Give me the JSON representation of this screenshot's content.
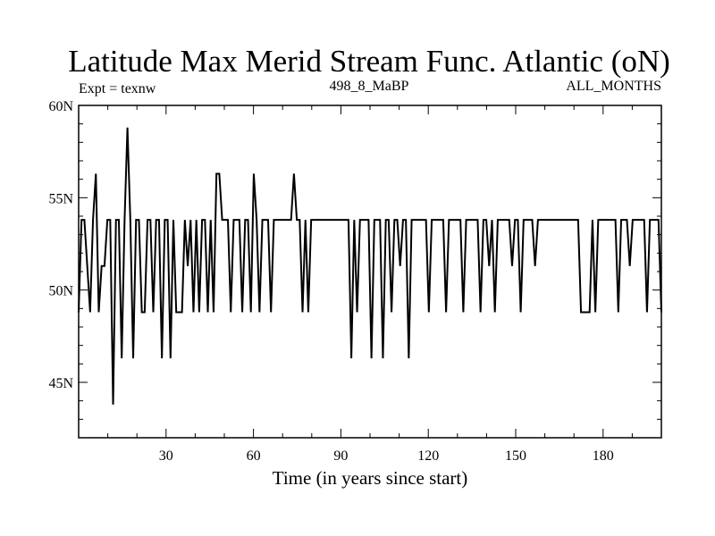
{
  "chart_data": {
    "type": "line",
    "title": "Latitude Max Merid Stream Func. Atlantic (oN)",
    "left_label": "Expt = texnw",
    "center_label": "498_8_MaBP",
    "right_label": "ALL_MONTHS",
    "xlabel": "Time (in years since start)",
    "ylabel": "",
    "xlim": [
      0,
      200
    ],
    "ylim": [
      42,
      60
    ],
    "x_ticks": [
      30,
      60,
      90,
      120,
      150,
      180
    ],
    "x_tick_labels": [
      "30",
      "60",
      "90",
      "120",
      "150",
      "180"
    ],
    "y_ticks": [
      45,
      50,
      55,
      60
    ],
    "y_tick_labels": [
      "45N",
      "50N",
      "55N",
      "60N"
    ],
    "grid": false,
    "series": [
      {
        "color": "#000000",
        "values": [
          48.8,
          53.8,
          53.8,
          51.3,
          48.8,
          53.8,
          56.3,
          48.8,
          51.3,
          51.3,
          53.8,
          53.8,
          43.8,
          53.8,
          53.8,
          46.3,
          53.8,
          58.8,
          53.8,
          46.3,
          53.8,
          53.8,
          48.8,
          48.8,
          53.8,
          53.8,
          48.8,
          53.8,
          53.8,
          46.3,
          53.8,
          53.8,
          46.3,
          53.8,
          48.8,
          48.8,
          48.8,
          53.8,
          51.3,
          53.8,
          48.8,
          53.8,
          48.8,
          53.8,
          53.8,
          48.8,
          53.8,
          48.8,
          56.3,
          56.3,
          53.8,
          53.8,
          53.8,
          48.8,
          53.8,
          53.8,
          53.8,
          48.8,
          53.8,
          53.8,
          48.8,
          56.3,
          53.8,
          48.8,
          53.8,
          53.8,
          53.8,
          48.8,
          53.8,
          53.8,
          53.8,
          53.8,
          53.8,
          53.8,
          53.8,
          56.3,
          53.8,
          53.8,
          48.8,
          53.8,
          48.8,
          53.8,
          53.8,
          53.8,
          53.8,
          53.8,
          53.8,
          53.8,
          53.8,
          53.8,
          53.8,
          53.8,
          53.8,
          53.8,
          53.8,
          46.3,
          53.8,
          48.8,
          53.8,
          53.8,
          53.8,
          53.8,
          46.3,
          53.8,
          53.8,
          53.8,
          46.3,
          53.8,
          53.8,
          48.8,
          53.8,
          53.8,
          51.3,
          53.8,
          53.8,
          46.3,
          53.8,
          53.8,
          53.8,
          53.8,
          53.8,
          53.8,
          48.8,
          53.8,
          53.8,
          53.8,
          53.8,
          53.8,
          48.8,
          53.8,
          53.8,
          53.8,
          53.8,
          53.8,
          48.8,
          53.8,
          53.8,
          53.8,
          53.8,
          53.8,
          48.8,
          53.8,
          53.8,
          51.3,
          53.8,
          48.8,
          53.8,
          53.8,
          53.8,
          53.8,
          53.8,
          51.3,
          53.8,
          53.8,
          48.8,
          53.8,
          53.8,
          53.8,
          53.8,
          51.3,
          53.8,
          53.8,
          53.8,
          53.8,
          53.8,
          53.8,
          53.8,
          53.8,
          53.8,
          53.8,
          53.8,
          53.8,
          53.8,
          53.8,
          53.8,
          48.8,
          48.8,
          48.8,
          48.8,
          53.8,
          48.8,
          53.8,
          53.8,
          53.8,
          53.8,
          53.8,
          53.8,
          53.8,
          48.8,
          53.8,
          53.8,
          53.8,
          51.3,
          53.8,
          53.8,
          53.8,
          53.8,
          53.8,
          48.8,
          53.8,
          53.8,
          53.8,
          53.8,
          48.8
        ]
      }
    ]
  }
}
